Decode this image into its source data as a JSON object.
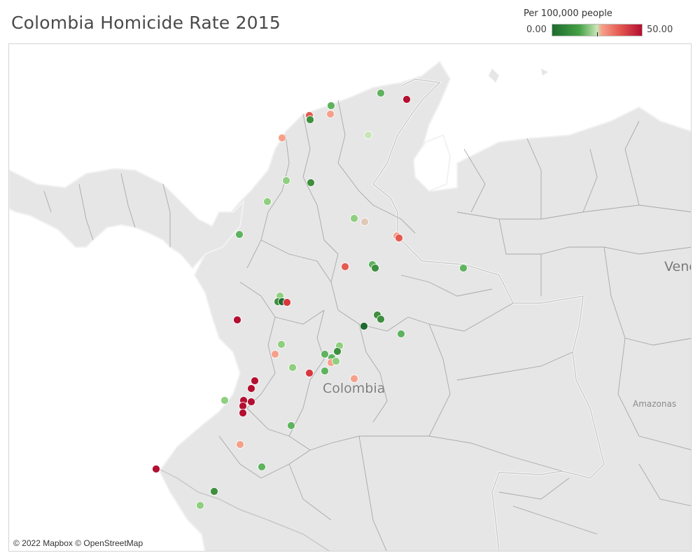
{
  "title": "Colombia Homicide Rate 2015",
  "legend": {
    "title": "Per 100,000 people",
    "min_label": "0.00",
    "max_label": "50.00",
    "colors": {
      "low": "#1e6b2e",
      "mid_low": "#c8e6b8",
      "mid_high": "#f6a08a",
      "high": "#b30f30"
    }
  },
  "map": {
    "labels": {
      "country": "Colombia",
      "neighbor": "Vene",
      "region": "Amazonas"
    },
    "attribution": "© 2022 Mapbox © OpenStreetMap",
    "marker_colors": [
      "#1e6b2e",
      "#3e8f3e",
      "#5fb35f",
      "#8fcf7f",
      "#c8e6b8",
      "#e0c8b8",
      "#f6a08a",
      "#e45a50",
      "#d8373d",
      "#b30f30"
    ]
  }
}
